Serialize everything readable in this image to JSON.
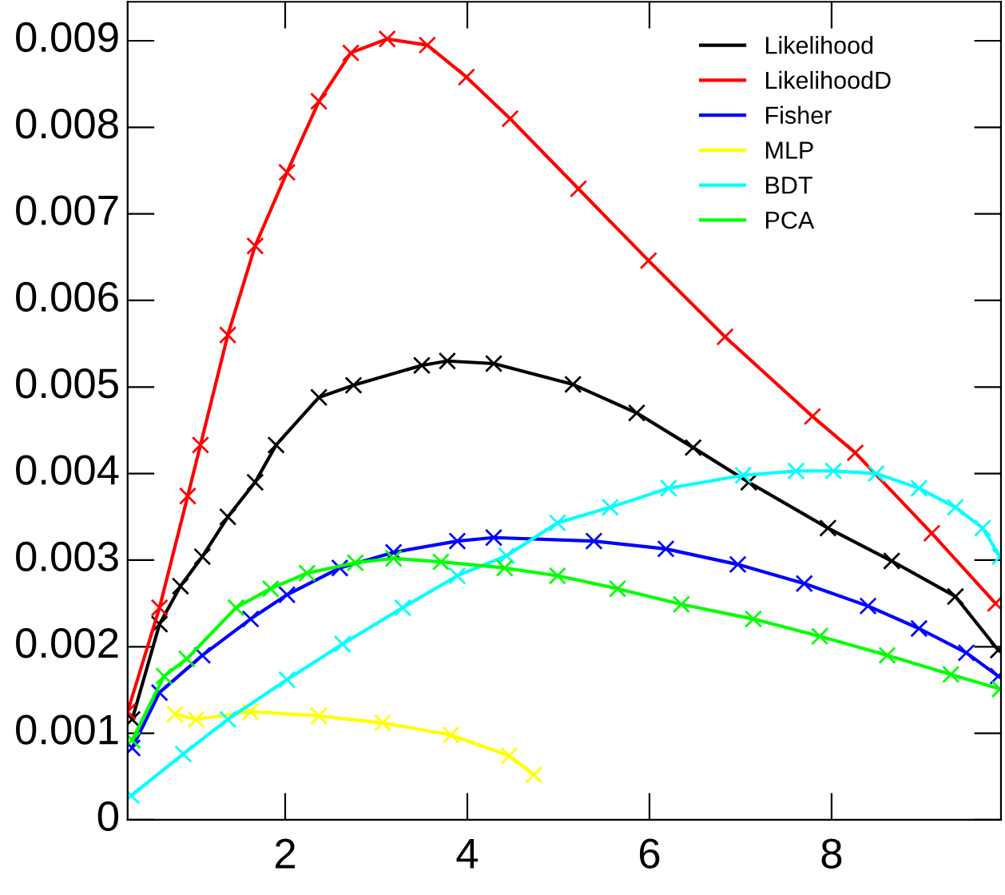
{
  "chart_data": {
    "type": "line",
    "marker": "cross",
    "line_style": "solid",
    "legend": "top right",
    "grid": false,
    "xlim": [
      0.27,
      9.86
    ],
    "ylim": [
      0,
      0.00945
    ],
    "xticks": [
      2,
      4,
      6,
      8
    ],
    "yticks": [
      0,
      0.001,
      0.002,
      0.003,
      0.004,
      0.005,
      0.006,
      0.007,
      0.008,
      0.009
    ],
    "series": [
      {
        "name": "Likelihood",
        "color": "#000000",
        "x": [
          0.32,
          0.62,
          0.85,
          1.09,
          1.37,
          1.67,
          1.9,
          2.37,
          2.75,
          3.5,
          3.78,
          4.29,
          5.16,
          5.86,
          6.48,
          7.09,
          7.96,
          8.66,
          9.36,
          9.83
        ],
        "values": [
          0.00116,
          0.00226,
          0.0027,
          0.00304,
          0.0035,
          0.0039,
          0.00433,
          0.00488,
          0.00502,
          0.00525,
          0.0053,
          0.00527,
          0.00503,
          0.0047,
          0.0043,
          0.0039,
          0.00337,
          0.00299,
          0.00258,
          0.00196
        ]
      },
      {
        "name": "LikelihoodD",
        "color": "#ff0000",
        "x": [
          0.27,
          0.62,
          0.93,
          1.07,
          1.37,
          1.67,
          2.02,
          2.37,
          2.72,
          3.12,
          3.56,
          3.99,
          4.47,
          5.22,
          5.99,
          6.83,
          7.79,
          8.26,
          9.1,
          9.8
        ],
        "values": [
          0.00125,
          0.00245,
          0.00374,
          0.00433,
          0.0056,
          0.00663,
          0.00748,
          0.0083,
          0.00886,
          0.00902,
          0.00895,
          0.00858,
          0.0081,
          0.00729,
          0.00646,
          0.00558,
          0.00466,
          0.00424,
          0.00331,
          0.0025
        ]
      },
      {
        "name": "Fisher",
        "color": "#0000ff",
        "x": [
          0.32,
          0.62,
          1.09,
          1.62,
          2.02,
          2.6,
          3.19,
          3.89,
          4.29,
          5.39,
          6.18,
          6.97,
          7.7,
          8.4,
          8.96,
          9.48,
          9.83
        ],
        "values": [
          0.00083,
          0.00147,
          0.0019,
          0.00232,
          0.0026,
          0.00291,
          0.00309,
          0.00322,
          0.00326,
          0.00322,
          0.00313,
          0.00295,
          0.00273,
          0.00247,
          0.00221,
          0.00193,
          0.00166
        ]
      },
      {
        "name": "MLP",
        "color": "#ffff00",
        "x": [
          0.79,
          1.02,
          1.62,
          2.37,
          3.07,
          3.82,
          4.46,
          4.73
        ],
        "values": [
          0.00122,
          0.00116,
          0.00125,
          0.0012,
          0.00112,
          0.00098,
          0.00074,
          0.00052
        ]
      },
      {
        "name": "BDT",
        "color": "#00ffff",
        "x": [
          0.31,
          0.88,
          1.37,
          2.02,
          2.63,
          3.29,
          3.89,
          4.43,
          4.99,
          5.57,
          6.21,
          7.03,
          7.61,
          8.02,
          8.49,
          8.96,
          9.36,
          9.66,
          9.85
        ],
        "values": [
          0.00028,
          0.00076,
          0.00116,
          0.00162,
          0.00203,
          0.00245,
          0.00282,
          0.00305,
          0.00343,
          0.00361,
          0.00383,
          0.00398,
          0.00403,
          0.00403,
          0.004,
          0.00383,
          0.00361,
          0.00337,
          0.00304
        ]
      },
      {
        "name": "PCA",
        "color": "#00ff00",
        "x": [
          0.32,
          0.67,
          0.92,
          1.46,
          1.84,
          2.24,
          2.77,
          3.19,
          3.71,
          4.41,
          4.99,
          5.65,
          6.35,
          7.14,
          7.87,
          8.61,
          9.31,
          9.85
        ],
        "values": [
          0.00092,
          0.00166,
          0.00186,
          0.00245,
          0.00267,
          0.00285,
          0.00297,
          0.00302,
          0.00298,
          0.00291,
          0.00282,
          0.00267,
          0.00249,
          0.00232,
          0.00212,
          0.0019,
          0.00168,
          0.00151
        ]
      }
    ]
  }
}
